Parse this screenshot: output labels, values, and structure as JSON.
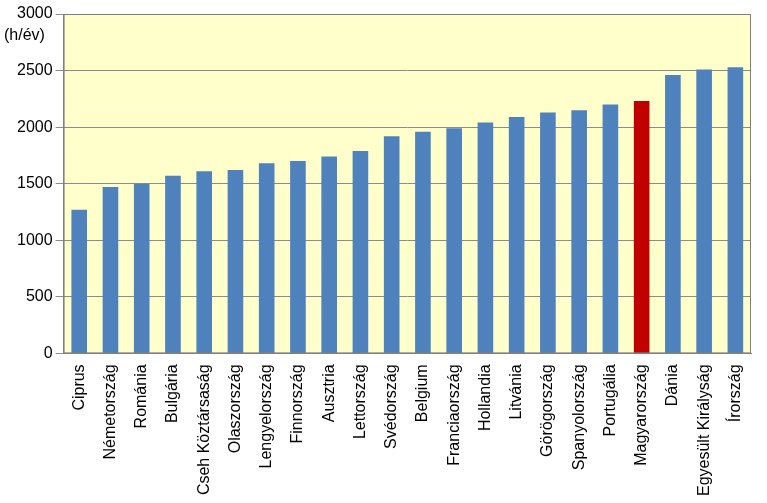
{
  "chart_data": {
    "type": "bar",
    "y_label": "(h/év)",
    "categories": [
      "Ciprus",
      "Németország",
      "Románia",
      "Bulgária",
      "Cseh Köztársaság",
      "Olaszország",
      "Lengyelország",
      "Finnország",
      "Ausztria",
      "Lettország",
      "Svédország",
      "Belgium",
      "Franciaország",
      "Hollandia",
      "Litvánia",
      "Görögország",
      "Spanyolország",
      "Portugália",
      "Magyarország",
      "Dánia",
      "Egyesült Királyság",
      "Írország"
    ],
    "values": [
      1270,
      1470,
      1500,
      1570,
      1610,
      1620,
      1680,
      1700,
      1740,
      1790,
      1920,
      1960,
      1990,
      2040,
      2090,
      2130,
      2150,
      2200,
      2230,
      2460,
      2510,
      2530
    ],
    "colors": [
      "#4f81bd",
      "#4f81bd",
      "#4f81bd",
      "#4f81bd",
      "#4f81bd",
      "#4f81bd",
      "#4f81bd",
      "#4f81bd",
      "#4f81bd",
      "#4f81bd",
      "#4f81bd",
      "#4f81bd",
      "#4f81bd",
      "#4f81bd",
      "#4f81bd",
      "#4f81bd",
      "#4f81bd",
      "#4f81bd",
      "#c00000",
      "#4f81bd",
      "#4f81bd",
      "#4f81bd"
    ],
    "ylim": [
      0,
      3000
    ],
    "yticks": [
      0,
      500,
      1000,
      1500,
      2000,
      2500,
      3000
    ],
    "grid": true
  }
}
